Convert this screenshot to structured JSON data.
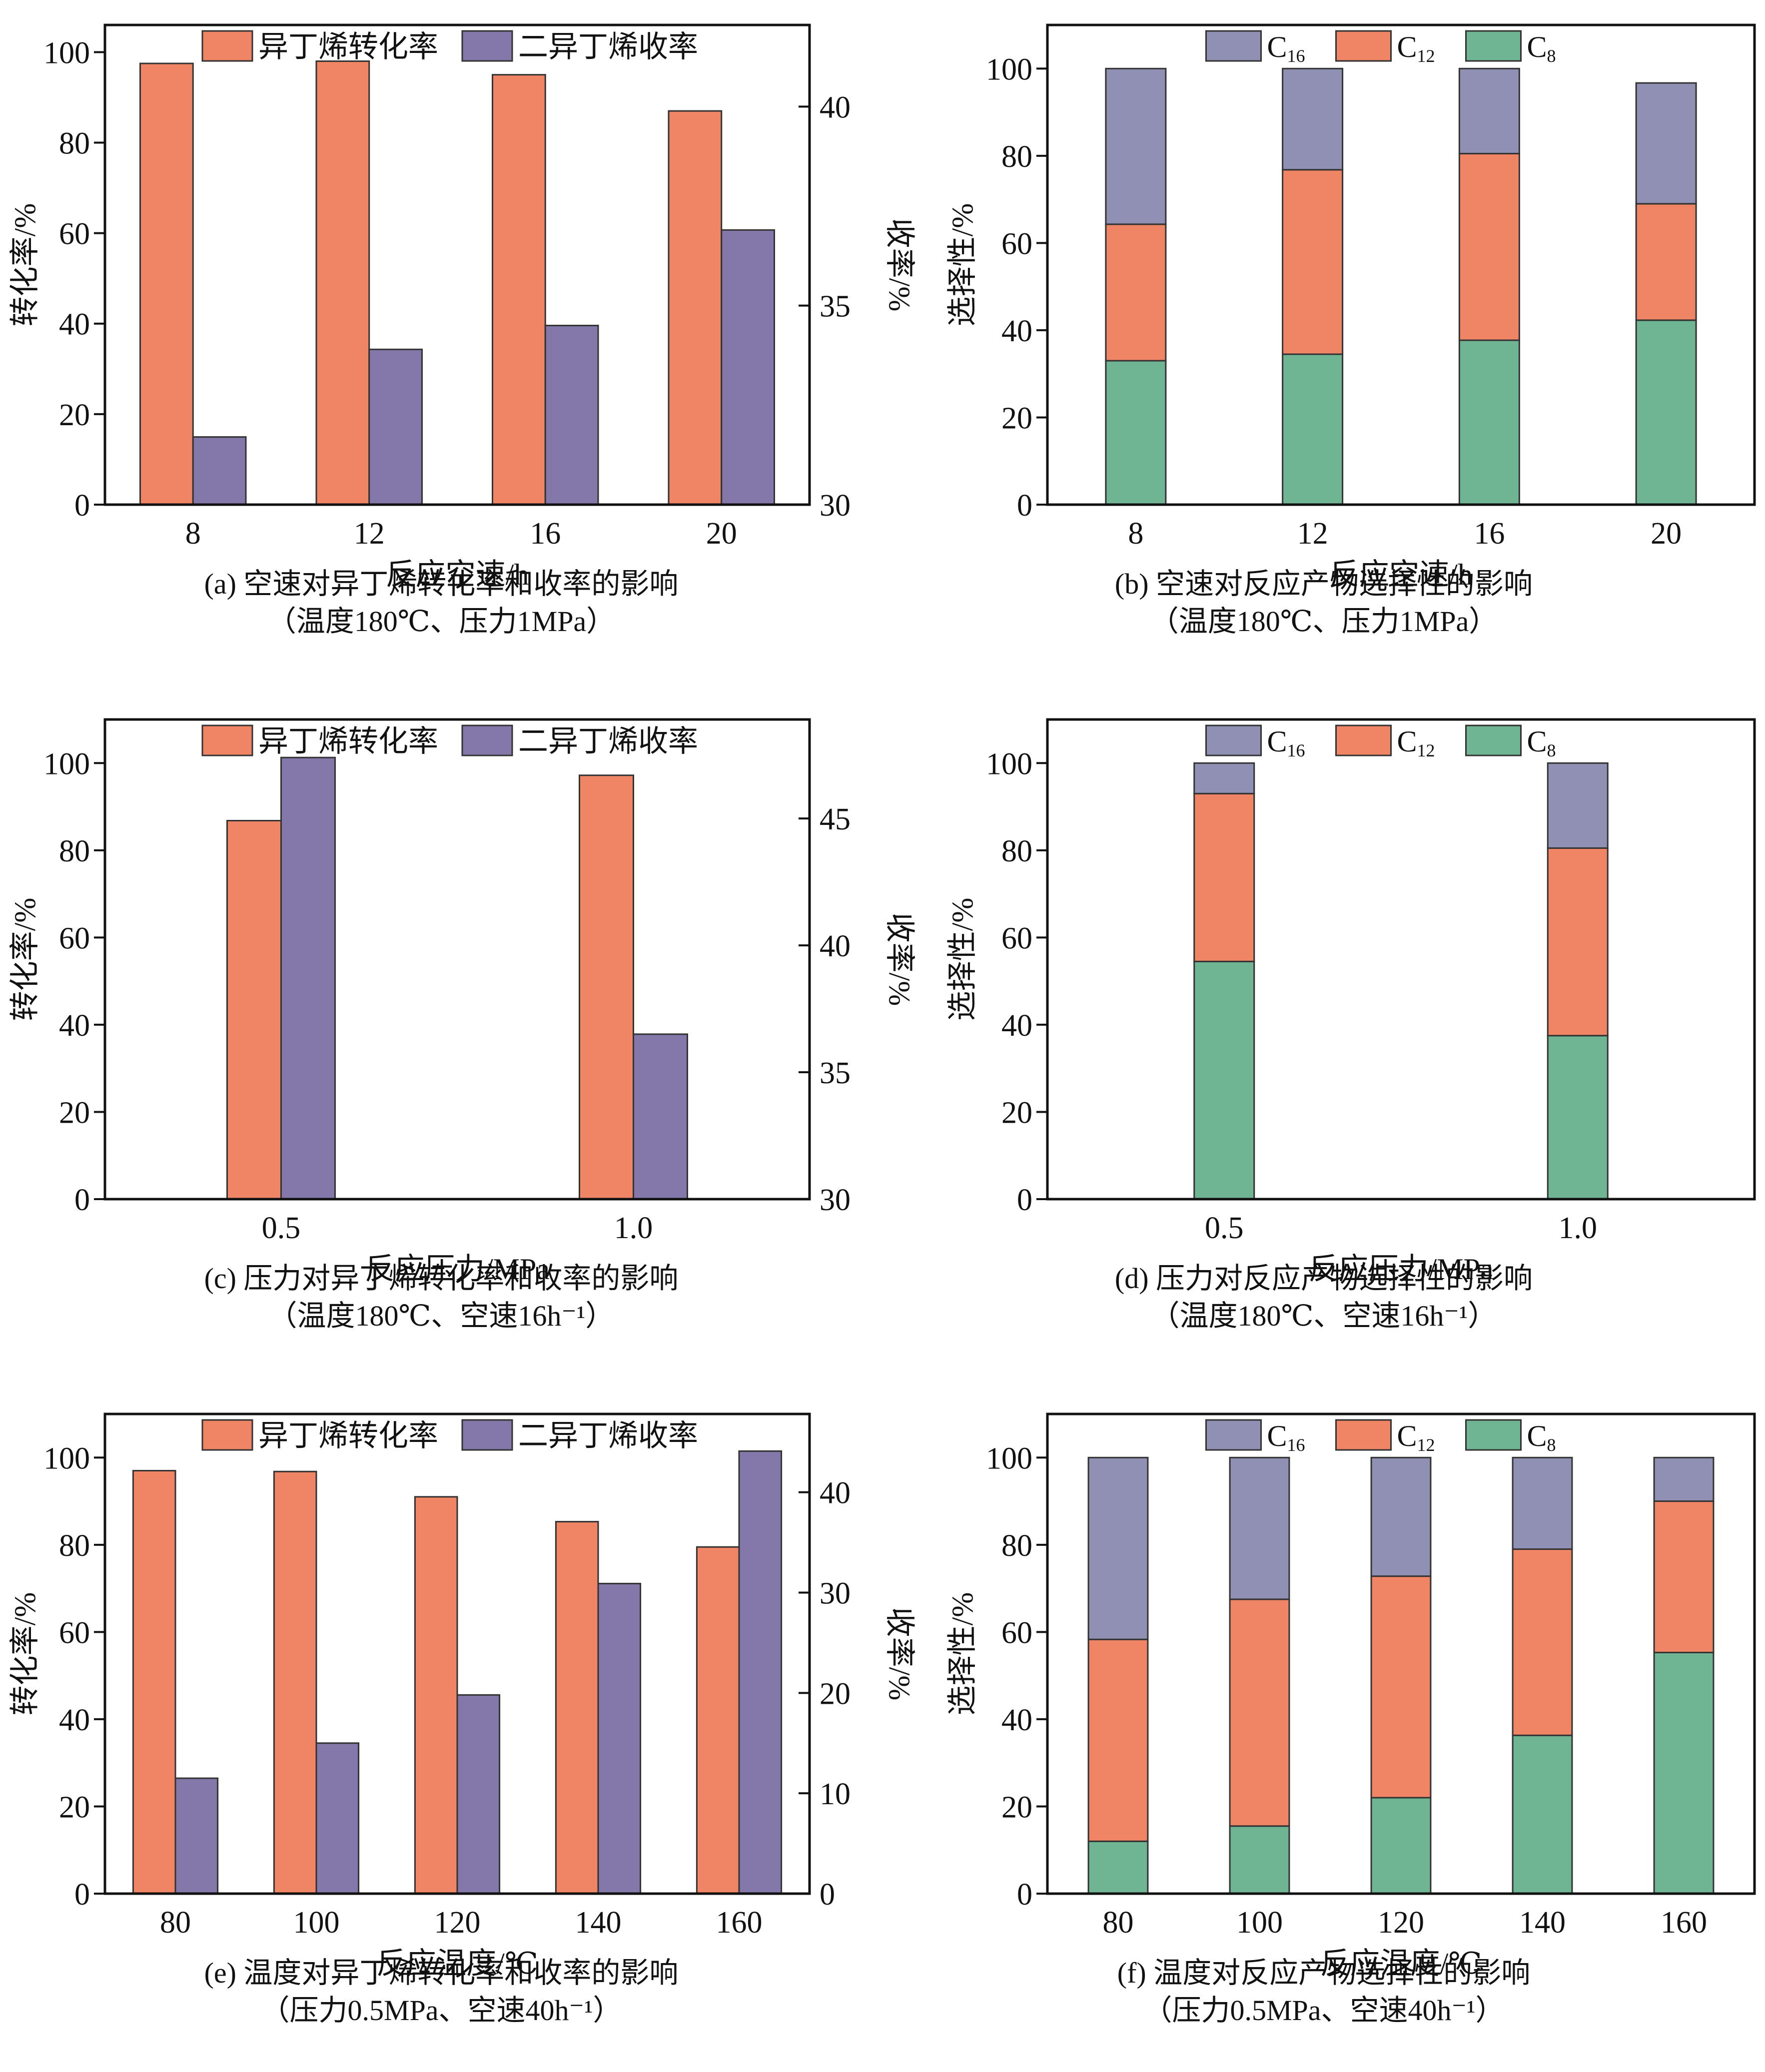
{
  "colors": {
    "conversion": "#F08566",
    "yield": "#8478AA",
    "C16": "#8F90B4",
    "C12": "#F08566",
    "C8": "#6FB493"
  },
  "chart_data": [
    {
      "id": "a",
      "type": "bar",
      "caption": "(a) 空速对异丁烯转化率和收率的影响",
      "subcaption": "（温度180℃、压力1MPa）",
      "xlabel": "反应空速/h",
      "ylabel": "转化率/%",
      "y2label": "收率/%",
      "categories": [
        "8",
        "12",
        "16",
        "20"
      ],
      "ylim": [
        0,
        106
      ],
      "yticks": [
        0,
        20,
        40,
        60,
        80,
        100
      ],
      "y2lim": [
        30,
        42.05
      ],
      "y2ticks": [
        30,
        35,
        40
      ],
      "legend_position": "top-center",
      "series": [
        {
          "name": "异丁烯转化率",
          "axis": "left",
          "color_key": "conversion",
          "values": [
            97.5,
            98,
            95,
            87
          ]
        },
        {
          "name": "二异丁烯收率",
          "axis": "right",
          "color_key": "yield",
          "values": [
            31.7,
            33.9,
            34.5,
            36.9
          ]
        }
      ]
    },
    {
      "id": "b",
      "type": "bar",
      "stacked": true,
      "caption": "(b) 空速对反应产物选择性的影响",
      "subcaption": "（温度180℃、压力1MPa）",
      "xlabel": "反应空速/h",
      "ylabel": "选择性/%",
      "categories": [
        "8",
        "12",
        "16",
        "20"
      ],
      "ylim": [
        0,
        110
      ],
      "yticks": [
        0,
        20,
        40,
        60,
        80,
        100
      ],
      "legend_position": "top-center",
      "legend": [
        {
          "base": "C",
          "sub": "16",
          "color_key": "C16"
        },
        {
          "base": "C",
          "sub": "12",
          "color_key": "C12"
        },
        {
          "base": "C",
          "sub": "8",
          "color_key": "C8"
        }
      ],
      "series": [
        {
          "name": "C8",
          "color_key": "C8",
          "values": [
            33,
            34.5,
            37.7,
            42.3
          ]
        },
        {
          "name": "C12",
          "color_key": "C12",
          "values": [
            31.3,
            42.3,
            42.8,
            26.7
          ]
        },
        {
          "name": "C16",
          "color_key": "C16",
          "values": [
            35.7,
            23.2,
            19.5,
            27.7
          ]
        }
      ]
    },
    {
      "id": "c",
      "type": "bar",
      "caption": "(c) 压力对异丁烯转化率和收率的影响",
      "subcaption": "（温度180℃、空速16h⁻¹）",
      "xlabel": "反应压力/MPa",
      "ylabel": "转化率/%",
      "y2label": "收率/%",
      "categories": [
        "0.5",
        "1.0"
      ],
      "ylim": [
        0,
        110
      ],
      "yticks": [
        0,
        20,
        40,
        60,
        80,
        100
      ],
      "y2lim": [
        30,
        48.9
      ],
      "y2ticks": [
        30,
        35,
        40,
        45
      ],
      "legend_position": "top-center",
      "series": [
        {
          "name": "异丁烯转化率",
          "axis": "left",
          "color_key": "conversion",
          "values": [
            86.8,
            97.2
          ]
        },
        {
          "name": "二异丁烯收率",
          "axis": "right",
          "color_key": "yield",
          "values": [
            47.4,
            36.5
          ]
        }
      ]
    },
    {
      "id": "d",
      "type": "bar",
      "stacked": true,
      "caption": "(d) 压力对反应产物选择性的影响",
      "subcaption": "（温度180℃、空速16h⁻¹）",
      "xlabel": "反应压力/MPa",
      "ylabel": "选择性/%",
      "categories": [
        "0.5",
        "1.0"
      ],
      "ylim": [
        0,
        110
      ],
      "yticks": [
        0,
        20,
        40,
        60,
        80,
        100
      ],
      "legend_position": "top-center",
      "legend": [
        {
          "base": "C",
          "sub": "16",
          "color_key": "C16"
        },
        {
          "base": "C",
          "sub": "12",
          "color_key": "C12"
        },
        {
          "base": "C",
          "sub": "8",
          "color_key": "C8"
        }
      ],
      "series": [
        {
          "name": "C8",
          "color_key": "C8",
          "values": [
            54.5,
            37.5
          ]
        },
        {
          "name": "C12",
          "color_key": "C12",
          "values": [
            38.5,
            43
          ]
        },
        {
          "name": "C16",
          "color_key": "C16",
          "values": [
            7,
            19.5
          ]
        }
      ]
    },
    {
      "id": "e",
      "type": "bar",
      "caption": "(e) 温度对异丁烯转化率和收率的影响",
      "subcaption": "（压力0.5MPa、空速40h⁻¹）",
      "xlabel": "反应温度/℃",
      "ylabel": "转化率/%",
      "y2label": "收率/%",
      "categories": [
        "80",
        "100",
        "120",
        "140",
        "160"
      ],
      "ylim": [
        0,
        110
      ],
      "yticks": [
        0,
        20,
        40,
        60,
        80,
        100
      ],
      "y2lim": [
        0,
        47.8
      ],
      "y2ticks": [
        0,
        10,
        20,
        30,
        40
      ],
      "legend_position": "top-center",
      "series": [
        {
          "name": "异丁烯转化率",
          "axis": "left",
          "color_key": "conversion",
          "values": [
            97,
            96.8,
            91,
            85.3,
            79.5
          ]
        },
        {
          "name": "二异丁烯收率",
          "axis": "right",
          "color_key": "yield",
          "values": [
            11.5,
            15,
            19.8,
            30.9,
            44.1
          ]
        }
      ]
    },
    {
      "id": "f",
      "type": "bar",
      "stacked": true,
      "caption": "(f) 温度对反应产物选择性的影响",
      "subcaption": "（压力0.5MPa、空速40h⁻¹）",
      "xlabel": "反应温度/℃",
      "ylabel": "选择性/%",
      "categories": [
        "80",
        "100",
        "120",
        "140",
        "160"
      ],
      "ylim": [
        0,
        110
      ],
      "yticks": [
        0,
        20,
        40,
        60,
        80,
        100
      ],
      "legend_position": "top-center",
      "legend": [
        {
          "base": "C",
          "sub": "16",
          "color_key": "C16"
        },
        {
          "base": "C",
          "sub": "12",
          "color_key": "C12"
        },
        {
          "base": "C",
          "sub": "8",
          "color_key": "C8"
        }
      ],
      "series": [
        {
          "name": "C8",
          "color_key": "C8",
          "values": [
            12,
            15.5,
            22,
            36.3,
            55.3
          ]
        },
        {
          "name": "C12",
          "color_key": "C12",
          "values": [
            46.3,
            52,
            50.8,
            42.7,
            34.7
          ]
        },
        {
          "name": "C16",
          "color_key": "C16",
          "values": [
            41.7,
            32.5,
            27.2,
            21,
            10
          ]
        }
      ]
    }
  ]
}
